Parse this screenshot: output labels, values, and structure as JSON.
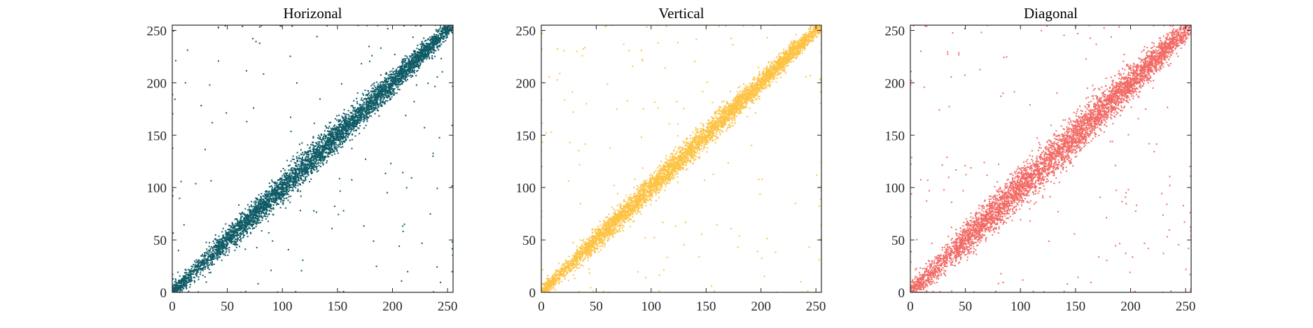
{
  "figure": {
    "background": "#ffffff"
  },
  "chart_data": [
    {
      "type": "scatter",
      "title": "Horizonal",
      "color": "#0f5b66",
      "xlim": [
        0,
        255
      ],
      "ylim": [
        0,
        255
      ],
      "xticks": [
        0,
        50,
        100,
        150,
        200,
        250
      ],
      "yticks": [
        0,
        50,
        100,
        150,
        200,
        250
      ],
      "grid": false,
      "pattern": {
        "relation": "y ≈ x",
        "spread_sd": 7,
        "approx_points": 5200,
        "outlier_points": 130,
        "axis_hugging_points": 40,
        "seed": 11
      }
    },
    {
      "type": "scatter",
      "title": "Vertical",
      "color": "#fdc344",
      "xlim": [
        0,
        255
      ],
      "ylim": [
        0,
        255
      ],
      "xticks": [
        0,
        50,
        100,
        150,
        200,
        250
      ],
      "yticks": [
        0,
        50,
        100,
        150,
        200,
        250
      ],
      "grid": false,
      "pattern": {
        "relation": "y ≈ x",
        "spread_sd": 6,
        "approx_points": 5200,
        "outlier_points": 130,
        "axis_hugging_points": 40,
        "seed": 23
      }
    },
    {
      "type": "scatter",
      "title": "Diagonal",
      "color": "#f26a65",
      "xlim": [
        0,
        255
      ],
      "ylim": [
        0,
        255
      ],
      "xticks": [
        0,
        50,
        100,
        150,
        200,
        250
      ],
      "yticks": [
        0,
        50,
        100,
        150,
        200,
        250
      ],
      "grid": false,
      "pattern": {
        "relation": "y ≈ x",
        "spread_sd": 9.5,
        "approx_points": 5200,
        "outlier_points": 140,
        "axis_hugging_points": 40,
        "seed": 37
      }
    }
  ]
}
